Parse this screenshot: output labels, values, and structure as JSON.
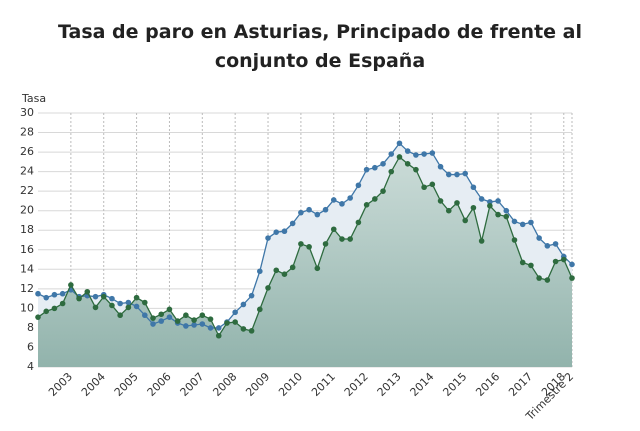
{
  "chart_data": {
    "type": "line",
    "title": "Tasa de paro en Asturias, Principado de frente al conjunto de España",
    "y_label": "Tasa",
    "categories": [
      null,
      null,
      null,
      null,
      "2003",
      null,
      null,
      null,
      "2004",
      null,
      null,
      null,
      "2005",
      null,
      null,
      null,
      "2006",
      null,
      null,
      null,
      "2007",
      null,
      null,
      null,
      "2008",
      null,
      null,
      null,
      "2009",
      null,
      null,
      null,
      "2010",
      null,
      null,
      null,
      "2011",
      null,
      null,
      null,
      "2012",
      null,
      null,
      null,
      "2013",
      null,
      null,
      null,
      "2014",
      null,
      null,
      null,
      "2015",
      null,
      null,
      null,
      "2016",
      null,
      null,
      null,
      "2017",
      null,
      null,
      null,
      "2018",
      "Trimestre 2"
    ],
    "series": [
      {
        "color": "#3f77a8",
        "fill": "#e6edf3",
        "values": [
          11.5,
          11.1,
          11.4,
          11.5,
          11.9,
          11.2,
          11.3,
          11.2,
          11.4,
          11.0,
          10.5,
          10.6,
          10.2,
          9.3,
          8.4,
          8.7,
          9.1,
          8.5,
          8.2,
          8.3,
          8.4,
          8.0,
          8.0,
          8.6,
          9.6,
          10.4,
          11.3,
          13.8,
          17.2,
          17.8,
          17.9,
          18.7,
          19.8,
          20.1,
          19.6,
          20.1,
          21.1,
          20.7,
          21.3,
          22.6,
          24.2,
          24.4,
          24.8,
          25.8,
          26.9,
          26.1,
          25.7,
          25.8,
          25.9,
          24.5,
          23.7,
          23.7,
          23.8,
          22.4,
          21.2,
          20.9,
          21.0,
          20.0,
          18.9,
          18.6,
          18.8,
          17.2,
          16.4,
          16.6,
          15.3,
          14.5
        ]
      },
      {
        "color": "#2e6b3f",
        "fill": "#9dbdb5",
        "values": [
          9.1,
          9.7,
          10.0,
          10.5,
          12.4,
          11.0,
          11.7,
          10.1,
          11.2,
          10.3,
          9.3,
          10.1,
          11.1,
          10.6,
          9.0,
          9.4,
          9.9,
          8.7,
          9.3,
          8.8,
          9.3,
          8.9,
          7.2,
          8.5,
          8.6,
          7.9,
          7.7,
          9.9,
          12.1,
          13.9,
          13.5,
          14.2,
          16.6,
          16.3,
          14.1,
          16.6,
          18.1,
          17.1,
          17.1,
          18.8,
          20.6,
          21.2,
          22.0,
          24.0,
          25.5,
          24.8,
          24.2,
          22.4,
          22.7,
          21.0,
          20.0,
          20.8,
          19.0,
          20.3,
          16.9,
          20.5,
          19.6,
          19.4,
          17.0,
          14.7,
          14.4,
          13.1,
          12.9,
          14.8,
          15.0,
          13.1
        ]
      }
    ],
    "ylim": [
      4,
      30
    ],
    "yticks": [
      4,
      6,
      8,
      10,
      12,
      14,
      16,
      18,
      20,
      22,
      24,
      26,
      28,
      30
    ],
    "grid": true
  }
}
